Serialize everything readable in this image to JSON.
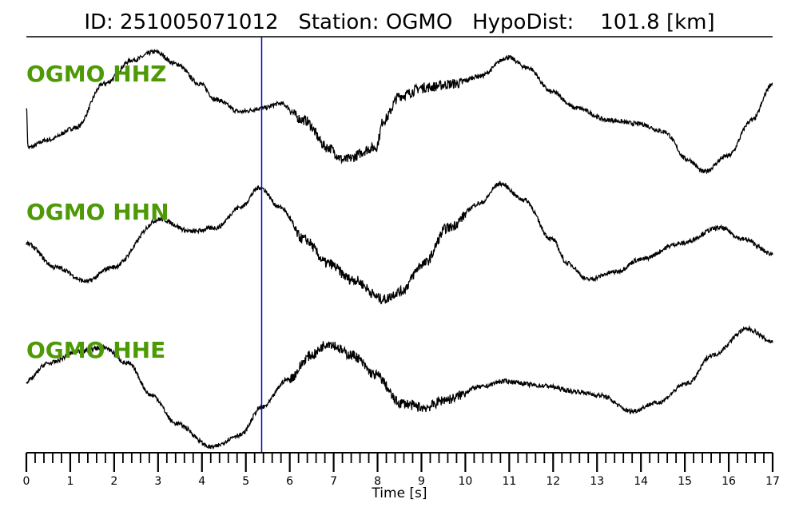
{
  "chart_data": {
    "type": "line",
    "title": "ID: 251005071012   Station: OGMO   HypoDist:    101.8 [km]",
    "xlabel": "Time [s]",
    "xlim": [
      0,
      17
    ],
    "x_major_ticks": [
      "0",
      "1",
      "2",
      "3",
      "4",
      "5",
      "6",
      "7",
      "8",
      "9",
      "10",
      "11",
      "12",
      "13",
      "14",
      "15",
      "16",
      "17"
    ],
    "x_minor_step": 0.2,
    "marker_time": 5.36,
    "label_color": "#4e9a06",
    "marker_color": "#0000cc",
    "series": [
      {
        "name": "OGMO HHZ",
        "points": [
          [
            0,
            0.09
          ],
          [
            0.04,
            -0.56
          ],
          [
            0.49,
            -0.44
          ],
          [
            1.13,
            -0.25
          ],
          [
            1.77,
            0.44
          ],
          [
            2.42,
            0.81
          ],
          [
            2.93,
            0.94
          ],
          [
            3.41,
            0.75
          ],
          [
            3.95,
            0.44
          ],
          [
            4.32,
            0.19
          ],
          [
            4.87,
            0
          ],
          [
            5.41,
            0.06
          ],
          [
            5.78,
            0.13
          ],
          [
            6.32,
            -0.13
          ],
          [
            6.87,
            -0.56
          ],
          [
            7.23,
            -0.75
          ],
          [
            7.96,
            -0.56
          ],
          [
            8.14,
            -0.13
          ],
          [
            8.51,
            0.25
          ],
          [
            9.06,
            0.38
          ],
          [
            9.78,
            0.44
          ],
          [
            10.33,
            0.56
          ],
          [
            10.97,
            0.85
          ],
          [
            11.42,
            0.69
          ],
          [
            11.97,
            0.31
          ],
          [
            12.52,
            0.06
          ],
          [
            13.25,
            -0.13
          ],
          [
            13.97,
            -0.19
          ],
          [
            14.52,
            -0.31
          ],
          [
            15.07,
            -0.75
          ],
          [
            15.43,
            -0.94
          ],
          [
            15.98,
            -0.69
          ],
          [
            16.53,
            -0.13
          ],
          [
            17,
            0.44
          ]
        ]
      },
      {
        "name": "OGMO HHN",
        "points": [
          [
            0,
            0.06
          ],
          [
            0.67,
            -0.31
          ],
          [
            1.37,
            -0.53
          ],
          [
            1.95,
            -0.31
          ],
          [
            3.04,
            0.44
          ],
          [
            3.77,
            0.25
          ],
          [
            4.32,
            0.31
          ],
          [
            4.87,
            0.63
          ],
          [
            5.32,
            0.94
          ],
          [
            5.78,
            0.63
          ],
          [
            6.32,
            0.13
          ],
          [
            6.87,
            -0.25
          ],
          [
            7.42,
            -0.5
          ],
          [
            8.14,
            -0.81
          ],
          [
            8.51,
            -0.69
          ],
          [
            9.06,
            -0.25
          ],
          [
            9.6,
            0.31
          ],
          [
            10.33,
            0.69
          ],
          [
            10.79,
            1.0
          ],
          [
            11.33,
            0.75
          ],
          [
            11.97,
            0.13
          ],
          [
            12.33,
            -0.25
          ],
          [
            12.79,
            -0.5
          ],
          [
            13.43,
            -0.38
          ],
          [
            13.97,
            -0.19
          ],
          [
            14.88,
            0.06
          ],
          [
            15.8,
            0.31
          ],
          [
            16.34,
            0.13
          ],
          [
            17,
            -0.1
          ]
        ]
      },
      {
        "name": "OGMO HHE",
        "points": [
          [
            0,
            0.03
          ],
          [
            0.49,
            0.31
          ],
          [
            1.22,
            0.5
          ],
          [
            1.77,
            0.56
          ],
          [
            2.31,
            0.31
          ],
          [
            2.86,
            -0.19
          ],
          [
            3.41,
            -0.63
          ],
          [
            4.23,
            -1.0
          ],
          [
            4.87,
            -0.81
          ],
          [
            5.36,
            -0.38
          ],
          [
            5.96,
            0.06
          ],
          [
            6.5,
            0.44
          ],
          [
            6.87,
            0.63
          ],
          [
            7.42,
            0.44
          ],
          [
            7.96,
            0.13
          ],
          [
            8.51,
            -0.31
          ],
          [
            9.06,
            -0.38
          ],
          [
            9.6,
            -0.25
          ],
          [
            10.33,
            -0.06
          ],
          [
            10.88,
            0.03
          ],
          [
            11.79,
            -0.04
          ],
          [
            12.52,
            -0.13
          ],
          [
            13.06,
            -0.19
          ],
          [
            13.79,
            -0.44
          ],
          [
            14.34,
            -0.31
          ],
          [
            15.07,
            0
          ],
          [
            15.62,
            0.44
          ],
          [
            16.43,
            0.85
          ],
          [
            17,
            0.65
          ]
        ]
      }
    ]
  }
}
